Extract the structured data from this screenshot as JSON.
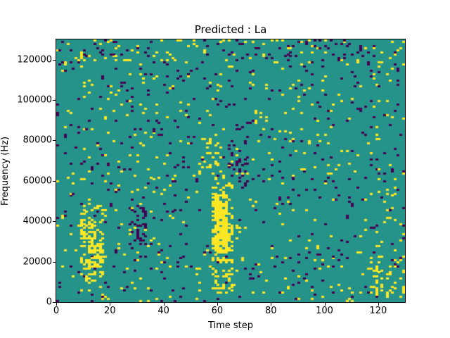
{
  "chart_data": {
    "type": "heatmap",
    "title": "Predicted : La",
    "xlabel": "Time step",
    "ylabel": "Frequency (Hz)",
    "x_range": [
      0,
      130
    ],
    "y_range": [
      0,
      130000
    ],
    "x_ticks": [
      0,
      20,
      40,
      60,
      80,
      100,
      120
    ],
    "y_ticks": [
      0,
      20000,
      40000,
      60000,
      80000,
      100000,
      120000
    ],
    "grid": {
      "cols": 130,
      "rows": 130
    },
    "colors": {
      "mid": "#26938b",
      "high": "#fde725",
      "low": "#440154",
      "axes": "#000000",
      "figure_bg": "#ffffff"
    },
    "legend": "none",
    "noise": {
      "seed": 7,
      "high_density": 0.028,
      "low_density": 0.026
    },
    "clusters": [
      {
        "x0": 58,
        "x1": 65,
        "f0": 4000,
        "f1": 57000,
        "value": "high",
        "density": 0.3
      },
      {
        "x0": 59,
        "x1": 63,
        "f0": 24000,
        "f1": 52000,
        "value": "high",
        "density": 0.85
      },
      {
        "x0": 9,
        "x1": 17,
        "f0": 10000,
        "f1": 48000,
        "value": "high",
        "density": 0.25
      },
      {
        "x0": 12,
        "x1": 16,
        "f0": 16000,
        "f1": 34000,
        "value": "high",
        "density": 0.45
      },
      {
        "x0": 53,
        "x1": 61,
        "f0": 58000,
        "f1": 82000,
        "value": "high",
        "density": 0.15
      },
      {
        "x0": 28,
        "x1": 33,
        "f0": 28000,
        "f1": 46000,
        "value": "low",
        "density": 0.22
      },
      {
        "x0": 117,
        "x1": 129,
        "f0": 2000,
        "f1": 22000,
        "value": "high",
        "density": 0.15
      },
      {
        "x0": 64,
        "x1": 71,
        "f0": 58000,
        "f1": 88000,
        "value": "low",
        "density": 0.12
      },
      {
        "x0": 0,
        "x1": 129,
        "f0": 118000,
        "f1": 130000,
        "value": "high",
        "density": 0.035
      },
      {
        "x0": 0,
        "x1": 129,
        "f0": 118000,
        "f1": 130000,
        "value": "low",
        "density": 0.035
      }
    ]
  }
}
